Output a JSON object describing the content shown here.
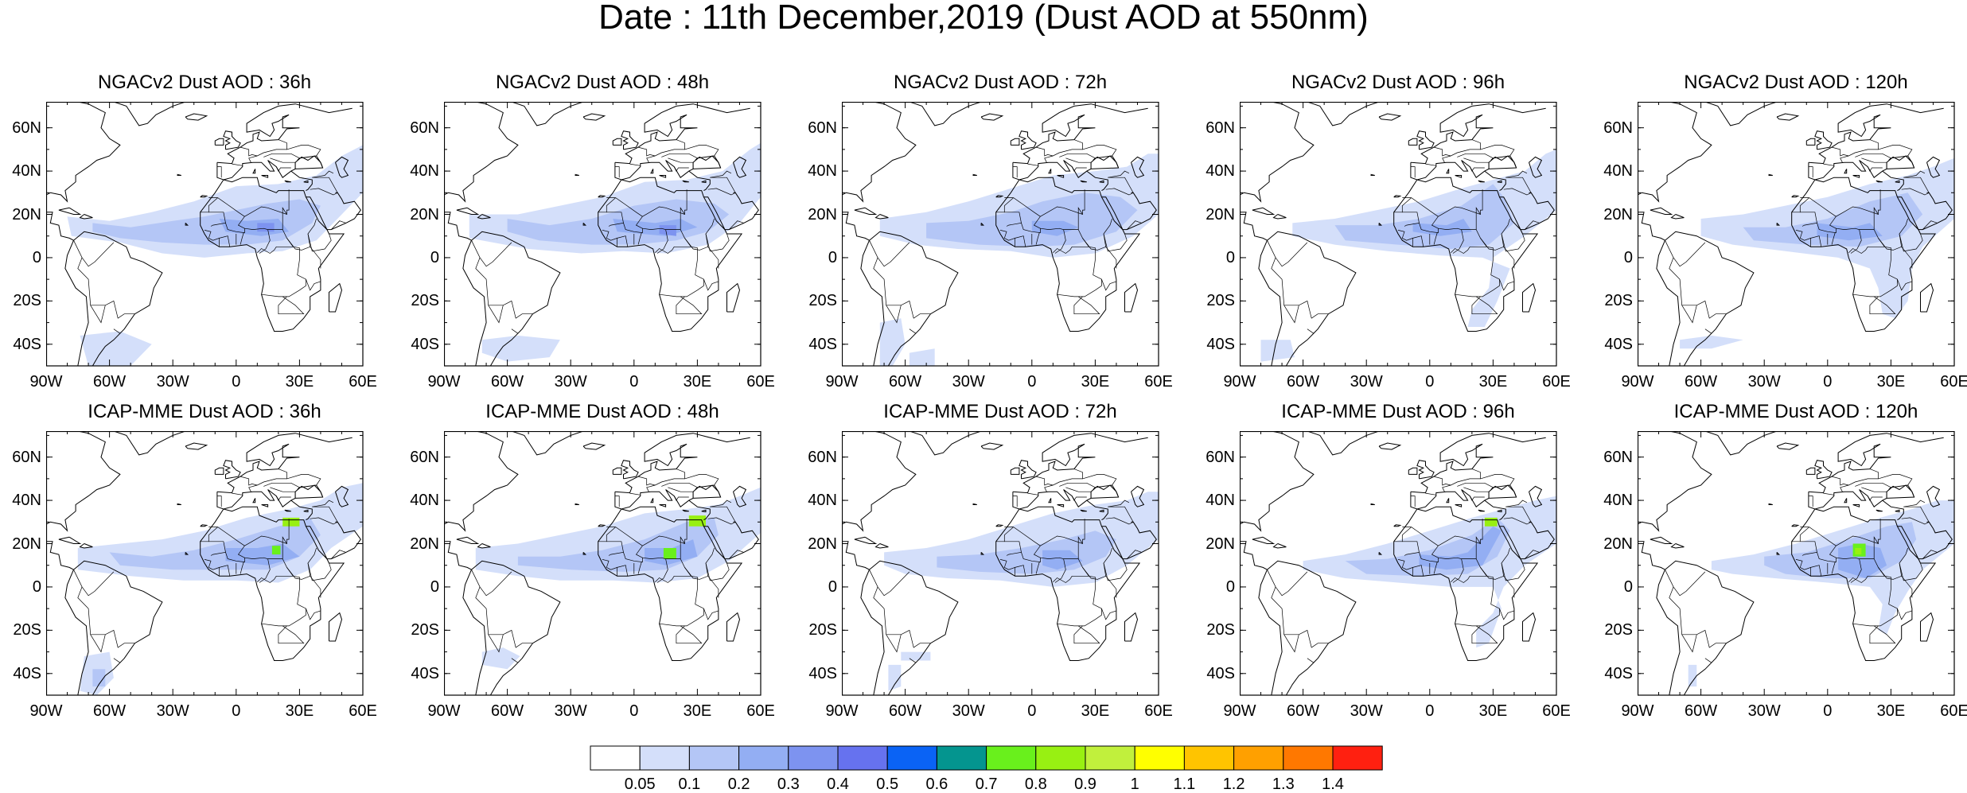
{
  "title": "Date : 11th December,2019 (Dust AOD at 550nm)",
  "panels": [
    {
      "model": "NGACv2",
      "title": "NGACv2 Dust AOD : 36h"
    },
    {
      "model": "NGACv2",
      "title": "NGACv2 Dust AOD : 48h"
    },
    {
      "model": "NGACv2",
      "title": "NGACv2 Dust AOD : 72h"
    },
    {
      "model": "NGACv2",
      "title": "NGACv2 Dust AOD : 96h"
    },
    {
      "model": "NGACv2",
      "title": "NGACv2 Dust AOD : 120h"
    },
    {
      "model": "ICAP-MME",
      "title": "ICAP-MME Dust AOD : 36h"
    },
    {
      "model": "ICAP-MME",
      "title": "ICAP-MME Dust AOD : 48h"
    },
    {
      "model": "ICAP-MME",
      "title": "ICAP-MME Dust AOD : 72h"
    },
    {
      "model": "ICAP-MME",
      "title": "ICAP-MME Dust AOD : 96h"
    },
    {
      "model": "ICAP-MME",
      "title": "ICAP-MME Dust AOD : 120h"
    }
  ],
  "map": {
    "lon_range": [
      -90,
      60
    ],
    "lat_range": [
      -50,
      72
    ],
    "lat_ticks": [
      "60N",
      "40N",
      "20N",
      "0",
      "20S",
      "40S"
    ],
    "lat_tick_values": [
      60,
      40,
      20,
      0,
      -20,
      -40
    ],
    "lon_ticks": [
      "90W",
      "60W",
      "30W",
      "0",
      "30E",
      "60E"
    ],
    "lon_tick_values": [
      -90,
      -60,
      -30,
      0,
      30,
      60
    ]
  },
  "colorbar": {
    "labels": [
      "0.05",
      "0.1",
      "0.2",
      "0.3",
      "0.4",
      "0.5",
      "0.6",
      "0.7",
      "0.8",
      "0.9",
      "1",
      "1.1",
      "1.2",
      "1.3",
      "1.4"
    ],
    "colors": [
      "#ffffff",
      "#d4dffa",
      "#b4c6f6",
      "#93aef3",
      "#7d93f0",
      "#6672ef",
      "#0a63f5",
      "#04958f",
      "#69f01c",
      "#98f012",
      "#c1f03c",
      "#ffff00",
      "#ffc400",
      "#ffa000",
      "#ff7800",
      "#ff2010"
    ]
  }
}
